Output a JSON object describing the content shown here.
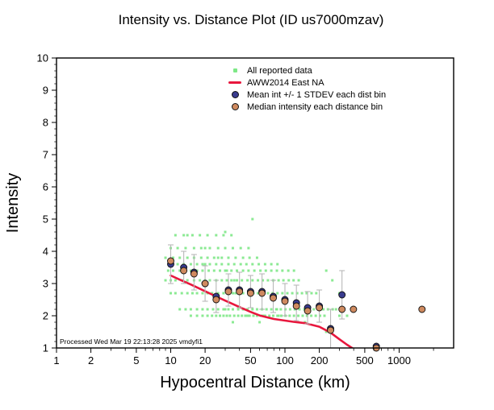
{
  "chart_data": {
    "type": "scatter",
    "title": "Intensity vs. Distance Plot (ID us7000mzav)",
    "xlabel": "Hypocentral Distance (km)",
    "ylabel": "Intensity",
    "xscale": "log",
    "xlim": [
      1,
      3000
    ],
    "ylim": [
      1,
      10
    ],
    "xticks": [
      1,
      2,
      5,
      10,
      20,
      50,
      100,
      200,
      500,
      1000
    ],
    "xminor": [
      3,
      4,
      6,
      7,
      8,
      9,
      30,
      40,
      60,
      70,
      80,
      90,
      300,
      400,
      600,
      700,
      800,
      900,
      2000
    ],
    "yticks": [
      1,
      2,
      3,
      4,
      5,
      6,
      7,
      8,
      9,
      10
    ],
    "yminor_step": 0.2,
    "grid": false,
    "legend_position": "upper-center-inside",
    "footer": "Processed Wed Mar 19 22:13:28 2025 vmdyfi1",
    "legend": [
      {
        "label": "All reported data",
        "marker": "scatter-dot"
      },
      {
        "label": "AWW2014 East NA",
        "marker": "line"
      },
      {
        "label": "Mean int +/- 1 STDEV each dist bin",
        "marker": "mean-circle"
      },
      {
        "label": "Median intensity each distance bin",
        "marker": "median-circle"
      }
    ],
    "colors": {
      "scatter": "#7ee887",
      "line": "#e8173d",
      "mean": "#393b8e",
      "median": "#cf8a5f",
      "error": "#b8b8b8",
      "frame": "#000000"
    },
    "aww2014_line": [
      [
        10,
        3.25
      ],
      [
        12,
        3.12
      ],
      [
        15,
        2.97
      ],
      [
        20,
        2.76
      ],
      [
        25,
        2.6
      ],
      [
        30,
        2.47
      ],
      [
        40,
        2.27
      ],
      [
        50,
        2.12
      ],
      [
        60,
        2.01
      ],
      [
        70,
        1.95
      ],
      [
        80,
        1.9
      ],
      [
        100,
        1.85
      ],
      [
        120,
        1.81
      ],
      [
        150,
        1.77
      ],
      [
        200,
        1.66
      ],
      [
        250,
        1.48
      ],
      [
        300,
        1.27
      ],
      [
        350,
        1.1
      ],
      [
        420,
        0.92
      ]
    ],
    "mean_bins": [
      {
        "d": 10,
        "mean": 3.6,
        "std": 0.6
      },
      {
        "d": 13,
        "mean": 3.5,
        "std": 0.5
      },
      {
        "d": 16,
        "mean": 3.35,
        "std": 0.55
      },
      {
        "d": 20,
        "mean": 3.0,
        "std": 0.55
      },
      {
        "d": 25,
        "mean": 2.6,
        "std": 0.5
      },
      {
        "d": 32,
        "mean": 2.8,
        "std": 0.5
      },
      {
        "d": 40,
        "mean": 2.8,
        "std": 0.55
      },
      {
        "d": 50,
        "mean": 2.75,
        "std": 0.5
      },
      {
        "d": 63,
        "mean": 2.75,
        "std": 0.55
      },
      {
        "d": 79,
        "mean": 2.6,
        "std": 0.5
      },
      {
        "d": 100,
        "mean": 2.5,
        "std": 0.5
      },
      {
        "d": 126,
        "mean": 2.4,
        "std": 0.55
      },
      {
        "d": 158,
        "mean": 2.25,
        "std": 0.5
      },
      {
        "d": 200,
        "mean": 2.3,
        "std": 0.5
      },
      {
        "d": 251,
        "mean": 1.6,
        "std": 0.6
      },
      {
        "d": 316,
        "mean": 2.65,
        "std": 0.75
      },
      {
        "d": 631,
        "mean": 1.05,
        "std": 0.05
      }
    ],
    "median_bins": [
      {
        "d": 10,
        "median": 3.7
      },
      {
        "d": 13,
        "median": 3.4
      },
      {
        "d": 16,
        "median": 3.3
      },
      {
        "d": 20,
        "median": 3.0
      },
      {
        "d": 25,
        "median": 2.5
      },
      {
        "d": 32,
        "median": 2.75
      },
      {
        "d": 40,
        "median": 2.75
      },
      {
        "d": 50,
        "median": 2.7
      },
      {
        "d": 63,
        "median": 2.7
      },
      {
        "d": 79,
        "median": 2.55
      },
      {
        "d": 100,
        "median": 2.45
      },
      {
        "d": 126,
        "median": 2.3
      },
      {
        "d": 158,
        "median": 2.15
      },
      {
        "d": 200,
        "median": 2.25
      },
      {
        "d": 251,
        "median": 1.55
      },
      {
        "d": 316,
        "median": 2.2
      },
      {
        "d": 398,
        "median": 2.2
      },
      {
        "d": 631,
        "median": 1.0
      },
      {
        "d": 1585,
        "median": 2.2
      }
    ],
    "scatter_points": [
      [
        15,
        2
      ],
      [
        17,
        2
      ],
      [
        19,
        2
      ],
      [
        21,
        2
      ],
      [
        23,
        2
      ],
      [
        25,
        2
      ],
      [
        27,
        2
      ],
      [
        29,
        2
      ],
      [
        31,
        2
      ],
      [
        33,
        2
      ],
      [
        36,
        2
      ],
      [
        39,
        2
      ],
      [
        42,
        2
      ],
      [
        45,
        2
      ],
      [
        49,
        2
      ],
      [
        53,
        2
      ],
      [
        57,
        2
      ],
      [
        62,
        2
      ],
      [
        67,
        2
      ],
      [
        73,
        2
      ],
      [
        79,
        2
      ],
      [
        86,
        2
      ],
      [
        93,
        2
      ],
      [
        101,
        2
      ],
      [
        110,
        2
      ],
      [
        120,
        2
      ],
      [
        131,
        2
      ],
      [
        143,
        2
      ],
      [
        156,
        2
      ],
      [
        170,
        2
      ],
      [
        186,
        2
      ],
      [
        203,
        2
      ],
      [
        222,
        2
      ],
      [
        47,
        2
      ],
      [
        64,
        2
      ],
      [
        88,
        2
      ],
      [
        12,
        2.2
      ],
      [
        13.5,
        2.2
      ],
      [
        15,
        2.2
      ],
      [
        17,
        2.2
      ],
      [
        19,
        2.2
      ],
      [
        21,
        2.2
      ],
      [
        23.5,
        2.2
      ],
      [
        26,
        2.2
      ],
      [
        29,
        2.2
      ],
      [
        32,
        2.2
      ],
      [
        35,
        2.2
      ],
      [
        39,
        2.2
      ],
      [
        43,
        2.2
      ],
      [
        47,
        2.2
      ],
      [
        52,
        2.2
      ],
      [
        57,
        2.2
      ],
      [
        63,
        2.2
      ],
      [
        69,
        2.2
      ],
      [
        76,
        2.2
      ],
      [
        84,
        2.2
      ],
      [
        92,
        2.2
      ],
      [
        101,
        2.2
      ],
      [
        111,
        2.2
      ],
      [
        122,
        2.2
      ],
      [
        134,
        2.2
      ],
      [
        148,
        2.2
      ],
      [
        163,
        2.2
      ],
      [
        179,
        2.2
      ],
      [
        197,
        2.2
      ],
      [
        217,
        2.2
      ],
      [
        238,
        2.2
      ],
      [
        262,
        2.2
      ],
      [
        44,
        2.2
      ],
      [
        85,
        2.2
      ],
      [
        30,
        2.2
      ],
      [
        10,
        2.7
      ],
      [
        11,
        2.7
      ],
      [
        12.5,
        2.7
      ],
      [
        14,
        2.7
      ],
      [
        15.5,
        2.7
      ],
      [
        17,
        2.7
      ],
      [
        19,
        2.7
      ],
      [
        21,
        2.7
      ],
      [
        23,
        2.7
      ],
      [
        26,
        2.7
      ],
      [
        29,
        2.7
      ],
      [
        32,
        2.7
      ],
      [
        35,
        2.7
      ],
      [
        39,
        2.7
      ],
      [
        43,
        2.7
      ],
      [
        48,
        2.7
      ],
      [
        53,
        2.7
      ],
      [
        58,
        2.7
      ],
      [
        64,
        2.7
      ],
      [
        71,
        2.7
      ],
      [
        78,
        2.7
      ],
      [
        86,
        2.7
      ],
      [
        95,
        2.7
      ],
      [
        105,
        2.7
      ],
      [
        116,
        2.7
      ],
      [
        128,
        2.7
      ],
      [
        141,
        2.7
      ],
      [
        155,
        2.7
      ],
      [
        171,
        2.7
      ],
      [
        188,
        2.7
      ],
      [
        300,
        2.7
      ],
      [
        37,
        2.7
      ],
      [
        61,
        2.7
      ],
      [
        9,
        3.1
      ],
      [
        10,
        3.1
      ],
      [
        11,
        3.1
      ],
      [
        12.5,
        3.1
      ],
      [
        14,
        3.1
      ],
      [
        16,
        3.1
      ],
      [
        18,
        3.1
      ],
      [
        20,
        3.1
      ],
      [
        22,
        3.1
      ],
      [
        25,
        3.1
      ],
      [
        28,
        3.1
      ],
      [
        31,
        3.1
      ],
      [
        34,
        3.1
      ],
      [
        38,
        3.1
      ],
      [
        42,
        3.1
      ],
      [
        47,
        3.1
      ],
      [
        52,
        3.1
      ],
      [
        58,
        3.1
      ],
      [
        64,
        3.1
      ],
      [
        71,
        3.1
      ],
      [
        79,
        3.1
      ],
      [
        88,
        3.1
      ],
      [
        97,
        3.1
      ],
      [
        108,
        3.1
      ],
      [
        119,
        3.1
      ],
      [
        132,
        3.1
      ],
      [
        260,
        3.1
      ],
      [
        36,
        3.1
      ],
      [
        9.5,
        3.4
      ],
      [
        10.5,
        3.4
      ],
      [
        12,
        3.4
      ],
      [
        13.5,
        3.4
      ],
      [
        15,
        3.4
      ],
      [
        17,
        3.4
      ],
      [
        19,
        3.4
      ],
      [
        21.5,
        3.4
      ],
      [
        24,
        3.4
      ],
      [
        27,
        3.4
      ],
      [
        30,
        3.4
      ],
      [
        34,
        3.4
      ],
      [
        38,
        3.4
      ],
      [
        43,
        3.4
      ],
      [
        48,
        3.4
      ],
      [
        54,
        3.4
      ],
      [
        61,
        3.4
      ],
      [
        68,
        3.4
      ],
      [
        76,
        3.4
      ],
      [
        85,
        3.4
      ],
      [
        95,
        3.4
      ],
      [
        107,
        3.4
      ],
      [
        120,
        3.4
      ],
      [
        230,
        3.4
      ],
      [
        31,
        3.4
      ],
      [
        10,
        3.6
      ],
      [
        11.5,
        3.6
      ],
      [
        13,
        3.6
      ],
      [
        15,
        3.6
      ],
      [
        17,
        3.6
      ],
      [
        19,
        3.6
      ],
      [
        22,
        3.6
      ],
      [
        25,
        3.6
      ],
      [
        28,
        3.6
      ],
      [
        32,
        3.6
      ],
      [
        36,
        3.6
      ],
      [
        41,
        3.6
      ],
      [
        46,
        3.6
      ],
      [
        52,
        3.6
      ],
      [
        59,
        3.6
      ],
      [
        67,
        3.6
      ],
      [
        76,
        3.6
      ],
      [
        86,
        3.6
      ],
      [
        20,
        3.6
      ],
      [
        9,
        3.8
      ],
      [
        10.5,
        3.8
      ],
      [
        12,
        3.8
      ],
      [
        14,
        3.8
      ],
      [
        16,
        3.8
      ],
      [
        18.5,
        3.8
      ],
      [
        21,
        3.8
      ],
      [
        24,
        3.8
      ],
      [
        28,
        3.8
      ],
      [
        32,
        3.8
      ],
      [
        37,
        3.8
      ],
      [
        43,
        3.8
      ],
      [
        49,
        3.8
      ],
      [
        57,
        3.8
      ],
      [
        26,
        3.8
      ],
      [
        10,
        4.1
      ],
      [
        11.5,
        4.1
      ],
      [
        13.5,
        4.1
      ],
      [
        16,
        4.1
      ],
      [
        18.5,
        4.1
      ],
      [
        22,
        4.1
      ],
      [
        26,
        4.1
      ],
      [
        30,
        4.1
      ],
      [
        35,
        4.1
      ],
      [
        41,
        4.1
      ],
      [
        48,
        4.1
      ],
      [
        20,
        4.1
      ],
      [
        11,
        4.5
      ],
      [
        13,
        4.5
      ],
      [
        15.5,
        4.5
      ],
      [
        18,
        4.5
      ],
      [
        21,
        4.5
      ],
      [
        25,
        4.5
      ],
      [
        29,
        4.5
      ],
      [
        34,
        4.5
      ],
      [
        14,
        4.5
      ],
      [
        30,
        4.6
      ],
      [
        52,
        5
      ],
      [
        35,
        1.8
      ],
      [
        60,
        1.8
      ],
      [
        150,
        1.8
      ],
      [
        280,
        2.2
      ],
      [
        300,
        2
      ],
      [
        320,
        2.2
      ],
      [
        350,
        2
      ],
      [
        230,
        1.5
      ]
    ]
  }
}
